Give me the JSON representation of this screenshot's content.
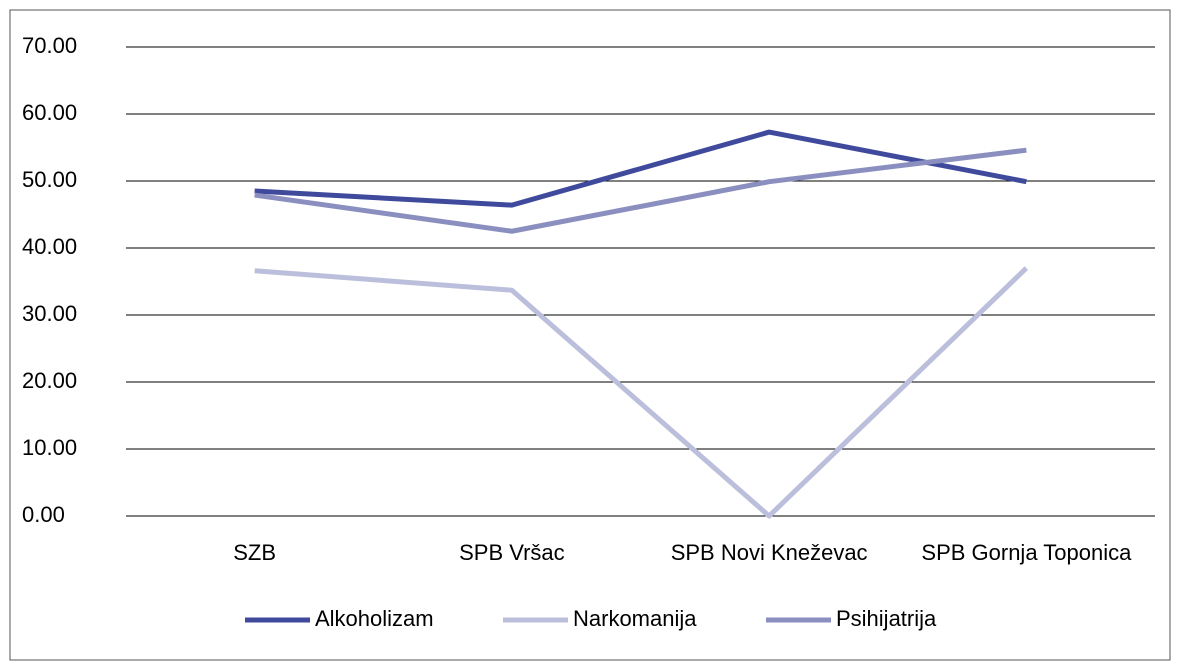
{
  "chart_data": {
    "type": "line",
    "categories": [
      "SZB",
      "SPB Vršac",
      "SPB Novi Kneževac",
      "SPB Gornja Toponica"
    ],
    "series": [
      {
        "name": "Alkoholizam",
        "color": "#3f4a9c",
        "values": [
          48.5,
          46.4,
          57.3,
          49.9
        ]
      },
      {
        "name": "Narkomanija",
        "color": "#bcbfdb",
        "values": [
          36.6,
          33.7,
          0,
          37.0
        ]
      },
      {
        "name": "Psihijatrija",
        "color": "#8a8fbf",
        "values": [
          47.9,
          42.5,
          49.9,
          54.6
        ]
      }
    ],
    "ylim": [
      0,
      70
    ],
    "yticks": [
      {
        "value": 0,
        "label": "0.00"
      },
      {
        "value": 10,
        "label": "10.00"
      },
      {
        "value": 20,
        "label": "20.00"
      },
      {
        "value": 30,
        "label": "30.00"
      },
      {
        "value": 40,
        "label": "40.00"
      },
      {
        "value": 50,
        "label": "50.00"
      },
      {
        "value": 60,
        "label": "60.00"
      },
      {
        "value": 70,
        "label": "70.00"
      }
    ],
    "grid": true,
    "legend": "bottom"
  }
}
